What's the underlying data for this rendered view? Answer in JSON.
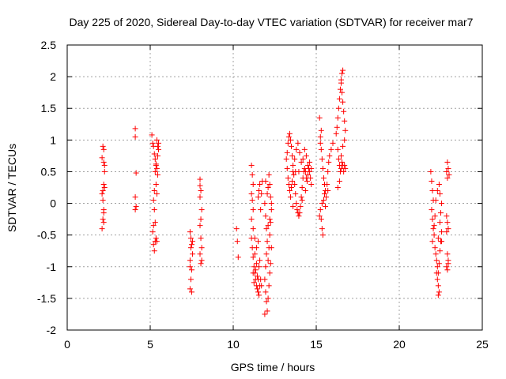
{
  "chart_data": {
    "type": "scatter",
    "title": "Day 225 of 2020, Sidereal Day-to-day VTEC variation (SDTVAR) for receiver mar7",
    "xlabel": "GPS time / hours",
    "ylabel": "SDTVAR / TECUs",
    "xlim": [
      0,
      25
    ],
    "ylim": [
      -2,
      2.5
    ],
    "xticks": [
      "0",
      "5",
      "10",
      "15",
      "20",
      "25"
    ],
    "yticks": [
      "2.5",
      "2",
      "1.5",
      "1",
      "0.5",
      "0",
      "-0.5",
      "-1",
      "-1.5",
      "-2"
    ],
    "grid": true,
    "marker": "+",
    "color": "#ff0000",
    "series": [
      {
        "name": "SDTVAR",
        "points": [
          [
            2.1,
            0.72
          ],
          [
            2.15,
            0.9
          ],
          [
            2.2,
            0.65
          ],
          [
            2.2,
            0.3
          ],
          [
            2.15,
            0.2
          ],
          [
            2.15,
            0.05
          ],
          [
            2.2,
            -0.1
          ],
          [
            2.15,
            -0.25
          ],
          [
            2.1,
            -0.4
          ],
          [
            2.25,
            0.5
          ],
          [
            2.2,
            0.85
          ],
          [
            2.25,
            0.6
          ],
          [
            2.2,
            -0.15
          ],
          [
            2.25,
            0.25
          ],
          [
            2.1,
            0.15
          ],
          [
            2.2,
            -0.3
          ],
          [
            4.1,
            1.18
          ],
          [
            4.1,
            1.05
          ],
          [
            4.15,
            0.48
          ],
          [
            4.1,
            0.1
          ],
          [
            4.15,
            -0.05
          ],
          [
            4.1,
            -0.1
          ],
          [
            5.1,
            1.08
          ],
          [
            5.15,
            0.95
          ],
          [
            5.2,
            0.9
          ],
          [
            5.25,
            0.78
          ],
          [
            5.3,
            0.7
          ],
          [
            5.35,
            0.62
          ],
          [
            5.4,
            0.55
          ],
          [
            5.45,
            0.45
          ],
          [
            5.5,
            0.95
          ],
          [
            5.35,
            0.3
          ],
          [
            5.25,
            0.2
          ],
          [
            5.2,
            0.05
          ],
          [
            5.25,
            -0.1
          ],
          [
            5.3,
            -0.3
          ],
          [
            5.35,
            -0.55
          ],
          [
            5.3,
            -0.6
          ],
          [
            5.2,
            -0.65
          ],
          [
            5.25,
            -0.75
          ],
          [
            5.15,
            -0.45
          ],
          [
            5.2,
            -0.35
          ],
          [
            5.4,
            -0.6
          ],
          [
            5.5,
            0.85
          ],
          [
            5.45,
            0.75
          ],
          [
            5.4,
            1.0
          ],
          [
            5.3,
            0.5
          ],
          [
            5.4,
            0.15
          ],
          [
            5.35,
            0.6
          ],
          [
            5.45,
            0.9
          ],
          [
            7.4,
            -0.45
          ],
          [
            7.45,
            -0.55
          ],
          [
            7.5,
            -0.65
          ],
          [
            7.55,
            -0.8
          ],
          [
            7.4,
            -0.9
          ],
          [
            7.5,
            -1.05
          ],
          [
            7.45,
            -1.2
          ],
          [
            7.4,
            -1.35
          ],
          [
            7.5,
            -1.4
          ],
          [
            7.55,
            -0.6
          ],
          [
            7.4,
            -1.0
          ],
          [
            7.45,
            -0.7
          ],
          [
            8.0,
            0.38
          ],
          [
            8.05,
            0.2
          ],
          [
            8.0,
            0.1
          ],
          [
            8.1,
            -0.1
          ],
          [
            8.05,
            -0.25
          ],
          [
            8.0,
            -0.35
          ],
          [
            8.05,
            -0.55
          ],
          [
            8.0,
            -0.8
          ],
          [
            8.1,
            -0.9
          ],
          [
            8.05,
            -0.95
          ],
          [
            8.0,
            0.28
          ],
          [
            8.1,
            -0.7
          ],
          [
            10.2,
            -0.4
          ],
          [
            10.25,
            -0.6
          ],
          [
            10.3,
            -0.85
          ],
          [
            11.1,
            0.6
          ],
          [
            11.15,
            0.45
          ],
          [
            11.2,
            0.3
          ],
          [
            11.1,
            0.15
          ],
          [
            11.15,
            0.05
          ],
          [
            11.2,
            -0.1
          ],
          [
            11.1,
            -0.25
          ],
          [
            11.2,
            -0.4
          ],
          [
            11.1,
            -0.55
          ],
          [
            11.15,
            -0.7
          ],
          [
            11.2,
            -0.85
          ],
          [
            11.25,
            -1.0
          ],
          [
            11.3,
            -1.1
          ],
          [
            11.35,
            -1.2
          ],
          [
            11.4,
            -1.3
          ],
          [
            11.45,
            -1.35
          ],
          [
            11.5,
            -1.4
          ],
          [
            11.55,
            -1.45
          ],
          [
            11.6,
            -1.3
          ],
          [
            11.3,
            -0.8
          ],
          [
            11.4,
            -0.95
          ],
          [
            11.5,
            -1.2
          ],
          [
            11.2,
            -1.1
          ],
          [
            11.25,
            -1.25
          ],
          [
            11.35,
            -1.05
          ],
          [
            11.45,
            -1.15
          ],
          [
            11.55,
            -1.0
          ],
          [
            11.6,
            -0.9
          ],
          [
            11.65,
            -1.2
          ],
          [
            11.7,
            -1.3
          ],
          [
            11.4,
            -0.7
          ],
          [
            11.3,
            -0.55
          ],
          [
            11.5,
            -0.6
          ],
          [
            11.6,
            0.3
          ],
          [
            11.55,
            0.2
          ],
          [
            11.5,
            0.1
          ],
          [
            11.65,
            -0.1
          ],
          [
            11.7,
            0.15
          ],
          [
            11.75,
            0.35
          ],
          [
            11.9,
            0.0
          ],
          [
            11.95,
            -0.2
          ],
          [
            12.0,
            -0.4
          ],
          [
            12.05,
            -0.6
          ],
          [
            12.0,
            -0.8
          ],
          [
            11.95,
            -1.0
          ],
          [
            11.9,
            -1.2
          ],
          [
            11.95,
            -1.4
          ],
          [
            12.0,
            -1.55
          ],
          [
            12.05,
            -1.7
          ],
          [
            11.9,
            -1.75
          ],
          [
            12.1,
            -1.5
          ],
          [
            12.15,
            -1.3
          ],
          [
            12.2,
            -1.1
          ],
          [
            12.1,
            -0.9
          ],
          [
            12.15,
            -0.7
          ],
          [
            12.2,
            -0.5
          ],
          [
            12.25,
            -0.3
          ],
          [
            12.3,
            -0.1
          ],
          [
            12.25,
            0.1
          ],
          [
            12.2,
            0.3
          ],
          [
            12.15,
            0.45
          ],
          [
            12.1,
            0.25
          ],
          [
            12.05,
            0.15
          ],
          [
            11.95,
            0.35
          ],
          [
            12.3,
            0.0
          ],
          [
            12.3,
            -0.7
          ],
          [
            12.2,
            -0.25
          ],
          [
            12.1,
            -0.35
          ],
          [
            12.25,
            -0.95
          ],
          [
            13.2,
            0.7
          ],
          [
            13.25,
            0.8
          ],
          [
            13.3,
            0.95
          ],
          [
            13.35,
            1.05
          ],
          [
            13.4,
            1.1
          ],
          [
            13.45,
            1.0
          ],
          [
            13.5,
            0.9
          ],
          [
            13.55,
            0.75
          ],
          [
            13.6,
            0.6
          ],
          [
            13.65,
            0.45
          ],
          [
            13.7,
            0.3
          ],
          [
            13.75,
            0.15
          ],
          [
            13.8,
            0.0
          ],
          [
            13.85,
            -0.1
          ],
          [
            13.9,
            -0.15
          ],
          [
            13.95,
            -0.2
          ],
          [
            14.0,
            -0.15
          ],
          [
            14.05,
            -0.05
          ],
          [
            14.1,
            0.1
          ],
          [
            14.15,
            0.25
          ],
          [
            14.2,
            0.4
          ],
          [
            14.25,
            0.5
          ],
          [
            14.3,
            0.55
          ],
          [
            14.35,
            0.5
          ],
          [
            14.4,
            0.4
          ],
          [
            14.45,
            0.35
          ],
          [
            14.5,
            0.45
          ],
          [
            14.55,
            0.55
          ],
          [
            14.6,
            0.5
          ],
          [
            14.65,
            0.4
          ],
          [
            14.7,
            0.3
          ],
          [
            13.3,
            0.4
          ],
          [
            13.35,
            0.3
          ],
          [
            13.4,
            0.2
          ],
          [
            13.45,
            0.1
          ],
          [
            13.5,
            0.25
          ],
          [
            13.55,
            0.35
          ],
          [
            13.6,
            0.5
          ],
          [
            13.7,
            0.7
          ],
          [
            13.8,
            0.85
          ],
          [
            13.9,
            0.95
          ],
          [
            14.0,
            0.8
          ],
          [
            14.1,
            0.65
          ],
          [
            14.2,
            0.7
          ],
          [
            14.3,
            0.85
          ],
          [
            14.4,
            0.75
          ],
          [
            14.5,
            0.6
          ],
          [
            14.6,
            0.65
          ],
          [
            14.7,
            0.55
          ],
          [
            13.25,
            0.55
          ],
          [
            13.6,
            -0.05
          ],
          [
            13.75,
            0.5
          ],
          [
            13.95,
            0.5
          ],
          [
            14.15,
            0.05
          ],
          [
            14.35,
            0.2
          ],
          [
            15.2,
            1.35
          ],
          [
            15.25,
            1.05
          ],
          [
            15.3,
            0.85
          ],
          [
            15.35,
            0.7
          ],
          [
            15.4,
            0.55
          ],
          [
            15.45,
            0.4
          ],
          [
            15.5,
            0.3
          ],
          [
            15.55,
            0.2
          ],
          [
            15.6,
            0.1
          ],
          [
            15.25,
            -0.1
          ],
          [
            15.3,
            -0.25
          ],
          [
            15.35,
            -0.4
          ],
          [
            15.4,
            -0.5
          ],
          [
            15.2,
            -0.2
          ],
          [
            15.35,
            0.0
          ],
          [
            15.5,
            0.15
          ],
          [
            15.65,
            0.3
          ],
          [
            15.7,
            0.5
          ],
          [
            15.75,
            0.65
          ],
          [
            15.8,
            0.75
          ],
          [
            15.9,
            0.85
          ],
          [
            16.0,
            0.95
          ],
          [
            15.45,
            0.05
          ],
          [
            15.55,
            -0.05
          ],
          [
            15.7,
            0.2
          ],
          [
            15.25,
            0.95
          ],
          [
            15.3,
            1.15
          ],
          [
            16.2,
            1.1
          ],
          [
            16.25,
            1.2
          ],
          [
            16.3,
            1.35
          ],
          [
            16.35,
            1.5
          ],
          [
            16.4,
            1.65
          ],
          [
            16.45,
            1.8
          ],
          [
            16.5,
            1.95
          ],
          [
            16.55,
            2.05
          ],
          [
            16.6,
            2.1
          ],
          [
            16.5,
            1.9
          ],
          [
            16.55,
            1.75
          ],
          [
            16.6,
            1.6
          ],
          [
            16.65,
            1.45
          ],
          [
            16.7,
            1.3
          ],
          [
            16.75,
            1.15
          ],
          [
            16.3,
            0.85
          ],
          [
            16.35,
            0.7
          ],
          [
            16.4,
            0.6
          ],
          [
            16.45,
            0.5
          ],
          [
            16.5,
            0.55
          ],
          [
            16.55,
            0.65
          ],
          [
            16.6,
            0.6
          ],
          [
            16.65,
            0.5
          ],
          [
            16.7,
            0.6
          ],
          [
            16.75,
            0.55
          ],
          [
            16.4,
            0.35
          ],
          [
            16.3,
            0.25
          ],
          [
            16.5,
            0.75
          ],
          [
            16.6,
            0.9
          ],
          [
            16.7,
            1.0
          ],
          [
            21.9,
            0.5
          ],
          [
            21.95,
            0.35
          ],
          [
            22.0,
            0.2
          ],
          [
            22.05,
            0.05
          ],
          [
            21.95,
            -0.1
          ],
          [
            22.0,
            -0.25
          ],
          [
            22.05,
            -0.4
          ],
          [
            22.1,
            -0.5
          ],
          [
            22.0,
            -0.6
          ],
          [
            22.15,
            -0.7
          ],
          [
            22.2,
            -0.8
          ],
          [
            22.25,
            -0.9
          ],
          [
            22.3,
            -1.0
          ],
          [
            22.35,
            -1.1
          ],
          [
            22.3,
            -1.2
          ],
          [
            22.35,
            -1.3
          ],
          [
            22.4,
            -1.4
          ],
          [
            22.35,
            -1.45
          ],
          [
            22.25,
            -1.1
          ],
          [
            22.4,
            -0.95
          ],
          [
            22.45,
            -0.75
          ],
          [
            22.5,
            -0.6
          ],
          [
            22.55,
            -0.45
          ],
          [
            22.45,
            -0.3
          ],
          [
            22.5,
            -0.15
          ],
          [
            22.55,
            0.0
          ],
          [
            22.45,
            0.15
          ],
          [
            22.4,
            0.3
          ],
          [
            22.3,
            0.2
          ],
          [
            22.2,
            0.05
          ],
          [
            22.15,
            -0.2
          ],
          [
            22.1,
            -0.35
          ],
          [
            22.35,
            -0.55
          ],
          [
            22.55,
            -0.6
          ],
          [
            22.9,
            0.65
          ],
          [
            22.95,
            0.55
          ],
          [
            22.85,
            0.5
          ],
          [
            23.0,
            0.45
          ],
          [
            22.9,
            0.4
          ],
          [
            22.85,
            -0.2
          ],
          [
            22.9,
            -0.3
          ],
          [
            22.95,
            -0.4
          ],
          [
            22.85,
            -0.45
          ],
          [
            22.9,
            -0.8
          ],
          [
            22.95,
            -0.9
          ],
          [
            22.85,
            -1.0
          ],
          [
            22.9,
            -1.05
          ],
          [
            22.95,
            -0.95
          ]
        ]
      }
    ]
  }
}
